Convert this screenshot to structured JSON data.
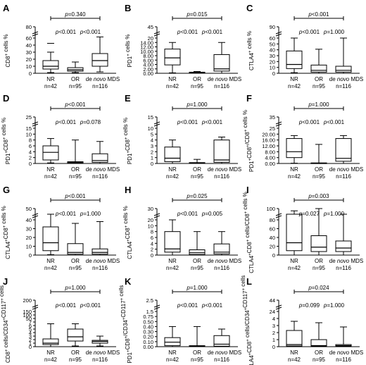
{
  "figure": {
    "group_labels": [
      "NR",
      "OR",
      "de novo MDS"
    ],
    "group_counts": [
      "n=42",
      "n=95",
      "n=116"
    ]
  },
  "chart_data": [
    {
      "panel": "A",
      "type": "box",
      "ylabel": "CD8+ cells %",
      "ticks": [
        "0",
        "10",
        "20",
        "30",
        "40",
        "60",
        "80"
      ],
      "ylim": [
        0,
        80
      ],
      "series": [
        {
          "name": "NR",
          "count": "n=42",
          "whisker_low": 1,
          "q1": 6,
          "median": 10,
          "q3": 18,
          "whisker_high": 30,
          "outlier": 45
        },
        {
          "name": "OR",
          "count": "n=95",
          "whisker_low": 1,
          "q1": 3,
          "median": 5,
          "q3": 8,
          "whisker_high": 16
        },
        {
          "name": "de novo MDS",
          "count": "n=116",
          "whisker_low": 2,
          "q1": 10,
          "median": 18,
          "q3": 28,
          "whisker_high": 62
        }
      ],
      "comparisons": [
        {
          "label": "p=0.340",
          "from": "NR",
          "to": "de novo MDS"
        },
        {
          "label": "p<0.001",
          "from": "NR",
          "to": "OR"
        },
        {
          "label": "p<0.001",
          "from": "OR",
          "to": "de novo MDS"
        }
      ]
    },
    {
      "panel": "B",
      "type": "box",
      "ylabel": "PD1+ cells %",
      "ticks": [
        "0.00",
        "2.00",
        "4.00",
        "6.00",
        "8.00",
        "10.00",
        "12.00",
        "14.00",
        "20",
        "45"
      ],
      "ylim": [
        0,
        45
      ],
      "series": [
        {
          "name": "NR",
          "count": "n=42",
          "whisker_low": 0.2,
          "q1": 3.8,
          "median": 7,
          "q3": 11,
          "whisker_high": 14
        },
        {
          "name": "OR",
          "count": "n=95",
          "whisker_low": 0,
          "q1": 0.1,
          "median": 0.3,
          "q3": 0.5,
          "whisker_high": 0.8
        },
        {
          "name": "de novo MDS",
          "count": "n=116",
          "whisker_low": 0,
          "q1": 1,
          "median": 2,
          "q3": 8.5,
          "whisker_high": 14
        }
      ],
      "comparisons": [
        {
          "label": "p=0.015",
          "from": "NR",
          "to": "de novo MDS"
        },
        {
          "label": "p<0.001",
          "from": "NR",
          "to": "OR"
        },
        {
          "label": "p<0.001",
          "from": "OR",
          "to": "de novo MDS"
        }
      ]
    },
    {
      "panel": "C",
      "type": "box",
      "ylabel": "CTLA4+ cells %",
      "ticks": [
        "0",
        "10",
        "20",
        "30",
        "40",
        "50",
        "60",
        "90"
      ],
      "ylim": [
        0,
        90
      ],
      "series": [
        {
          "name": "NR",
          "count": "n=42",
          "whisker_low": 1,
          "q1": 8,
          "median": 15,
          "q3": 38,
          "whisker_high": 60
        },
        {
          "name": "OR",
          "count": "n=95",
          "whisker_low": 0,
          "q1": 2,
          "median": 5,
          "q3": 14,
          "whisker_high": 41
        },
        {
          "name": "de novo MDS",
          "count": "n=116",
          "whisker_low": 0,
          "q1": 2,
          "median": 5,
          "q3": 12,
          "whisker_high": 60
        }
      ],
      "comparisons": [
        {
          "label": "p<0.001",
          "from": "NR",
          "to": "de novo MDS"
        },
        {
          "label": "p<0.001",
          "from": "NR",
          "to": "OR"
        },
        {
          "label": "p=1.000",
          "from": "OR",
          "to": "de novo MDS"
        }
      ]
    },
    {
      "panel": "D",
      "type": "box",
      "ylabel": "PD1+CD8+ cells %",
      "ticks": [
        "0",
        "2",
        "4",
        "6",
        "8",
        "10",
        "15",
        "25"
      ],
      "ylim": [
        0,
        25
      ],
      "series": [
        {
          "name": "NR",
          "count": "n=42",
          "whisker_low": 0.2,
          "q1": 1.2,
          "median": 3.8,
          "q3": 6,
          "whisker_high": 8.5
        },
        {
          "name": "OR",
          "count": "n=95",
          "whisker_low": 0,
          "q1": 0.1,
          "median": 0.3,
          "q3": 0.6,
          "whisker_high": 8
        },
        {
          "name": "de novo MDS",
          "count": "n=116",
          "whisker_low": 0,
          "q1": 0.4,
          "median": 1,
          "q3": 3.3,
          "whisker_high": 7.5
        }
      ],
      "comparisons": [
        {
          "label": "p<0.001",
          "from": "NR",
          "to": "de novo MDS"
        },
        {
          "label": "p<0.001",
          "from": "NR",
          "to": "OR"
        },
        {
          "label": "p=0.078",
          "from": "OR",
          "to": "de novo MDS"
        }
      ]
    },
    {
      "panel": "E",
      "type": "box",
      "ylabel": "PD1+CD8+ cells %",
      "ticks": [
        "0",
        "1",
        "2",
        "3",
        "4",
        "5",
        "10",
        "15"
      ],
      "ylim": [
        0,
        15
      ],
      "series": [
        {
          "name": "NR",
          "count": "n=42",
          "whisker_low": 0,
          "q1": 0.3,
          "median": 0.9,
          "q3": 2.8,
          "whisker_high": 4
        },
        {
          "name": "OR",
          "count": "n=95",
          "whisker_low": 0,
          "q1": 0,
          "median": 0.05,
          "q3": 0.15,
          "whisker_high": 0.7
        },
        {
          "name": "de novo MDS",
          "count": "n=116",
          "whisker_low": 0,
          "q1": 0.2,
          "median": 0.6,
          "q3": 4,
          "whisker_high": 4.5
        }
      ],
      "comparisons": [
        {
          "label": "p=1.000",
          "from": "NR",
          "to": "de novo MDS"
        },
        {
          "label": "p<0.001",
          "from": "NR",
          "to": "OR"
        },
        {
          "label": "p<0.001",
          "from": "OR",
          "to": "de novo MDS"
        }
      ]
    },
    {
      "panel": "F",
      "type": "box",
      "ylabel": "PD1+CD8+/CD8+ cells %",
      "ticks": [
        "0.00",
        "4.00",
        "8.00",
        "12.00",
        "16.00",
        "20.00",
        "25",
        "35"
      ],
      "ylim": [
        0,
        35
      ],
      "series": [
        {
          "name": "NR",
          "count": "n=42",
          "whisker_low": 0.2,
          "q1": 4,
          "median": 8,
          "q3": 17,
          "whisker_high": 19
        },
        {
          "name": "OR",
          "count": "n=95",
          "whisker_low": 0,
          "q1": 0,
          "median": 0.2,
          "q3": 0.4,
          "whisker_high": 13
        },
        {
          "name": "de novo MDS",
          "count": "n=116",
          "whisker_low": 0,
          "q1": 1.5,
          "median": 3.5,
          "q3": 17,
          "whisker_high": 19
        }
      ],
      "comparisons": [
        {
          "label": "p=1.000",
          "from": "NR",
          "to": "de novo MDS"
        },
        {
          "label": "p<0.001",
          "from": "NR",
          "to": "OR"
        },
        {
          "label": "p<0.001",
          "from": "OR",
          "to": "de novo MDS"
        }
      ]
    },
    {
      "panel": "G",
      "type": "box",
      "ylabel": "CTLA4+CD8+ cells %",
      "ticks": [
        "0",
        "10",
        "20",
        "30",
        "40",
        "50"
      ],
      "ylim": [
        0,
        50
      ],
      "series": [
        {
          "name": "NR",
          "count": "n=42",
          "whisker_low": 0.5,
          "q1": 5,
          "median": 14,
          "q3": 32,
          "whisker_high": 45
        },
        {
          "name": "OR",
          "count": "n=95",
          "whisker_low": 0,
          "q1": 1,
          "median": 3,
          "q3": 13,
          "whisker_high": 36
        },
        {
          "name": "de novo MDS",
          "count": "n=116",
          "whisker_low": 0,
          "q1": 1,
          "median": 3,
          "q3": 7,
          "whisker_high": 38
        }
      ],
      "comparisons": [
        {
          "label": "p<0.001",
          "from": "NR",
          "to": "de novo MDS"
        },
        {
          "label": "p<0.001",
          "from": "NR",
          "to": "OR"
        },
        {
          "label": "p=1.000",
          "from": "OR",
          "to": "de novo MDS"
        }
      ]
    },
    {
      "panel": "H",
      "type": "box",
      "ylabel": "CTLA4+CD8+ cells %",
      "ticks": [
        "0",
        "2",
        "4",
        "6",
        "8",
        "10",
        "20",
        "30"
      ],
      "ylim": [
        0,
        30
      ],
      "series": [
        {
          "name": "NR",
          "count": "n=42",
          "whisker_low": 0,
          "q1": 1,
          "median": 2.1,
          "q3": 8,
          "whisker_high": 20
        },
        {
          "name": "OR",
          "count": "n=95",
          "whisker_low": 0,
          "q1": 0.2,
          "median": 0.8,
          "q3": 1.8,
          "whisker_high": 8
        },
        {
          "name": "de novo MDS",
          "count": "n=116",
          "whisker_low": 0,
          "q1": 0.4,
          "median": 1,
          "q3": 3.8,
          "whisker_high": 8
        }
      ],
      "comparisons": [
        {
          "label": "p=0.025",
          "from": "NR",
          "to": "de novo MDS"
        },
        {
          "label": "p<0.001",
          "from": "NR",
          "to": "OR"
        },
        {
          "label": "p=0.005",
          "from": "OR",
          "to": "de novo MDS"
        }
      ]
    },
    {
      "panel": "I",
      "type": "box",
      "ylabel": "CTLA4+CD8+ cells/CD8+ cells %",
      "ticks": [
        "0",
        "20",
        "40",
        "60",
        "80",
        "100"
      ],
      "ylim": [
        0,
        100
      ],
      "series": [
        {
          "name": "NR",
          "count": "n=42",
          "whisker_low": 0,
          "q1": 10,
          "median": 28,
          "q3": 90,
          "whisker_high": 96
        },
        {
          "name": "OR",
          "count": "n=95",
          "whisker_low": 0,
          "q1": 8,
          "median": 18,
          "q3": 44,
          "whisker_high": 100
        },
        {
          "name": "de novo MDS",
          "count": "n=116",
          "whisker_low": 0,
          "q1": 8,
          "median": 16,
          "q3": 32,
          "whisker_high": 90
        }
      ],
      "comparisons": [
        {
          "label": "p=0.003",
          "from": "NR",
          "to": "de novo MDS"
        },
        {
          "label": "p=0.027",
          "from": "NR",
          "to": "OR"
        },
        {
          "label": "p=1.000",
          "from": "OR",
          "to": "de novo MDS"
        }
      ]
    },
    {
      "panel": "J",
      "type": "box",
      "ylabel": "CD8+ cells/CD34+CD117+ cells",
      "ticks": [
        "0",
        "1",
        "2",
        "3",
        "4",
        "5",
        "6",
        "7",
        "50",
        "100",
        "150",
        "200"
      ],
      "ylim": [
        0,
        200
      ],
      "series": [
        {
          "name": "NR",
          "count": "n=42",
          "whisker_low": 0,
          "q1": 0.6,
          "median": 1,
          "q3": 2.2,
          "whisker_high": 6.5
        },
        {
          "name": "OR",
          "count": "n=95",
          "whisker_low": 0.2,
          "q1": 1.6,
          "median": 2.8,
          "q3": 5,
          "whisker_high": 6.5
        },
        {
          "name": "de novo MDS",
          "count": "n=116",
          "whisker_low": 0.2,
          "q1": 1,
          "median": 1.5,
          "q3": 1.8,
          "whisker_high": 3
        }
      ],
      "comparisons": [
        {
          "label": "p=1.000",
          "from": "NR",
          "to": "de novo MDS"
        },
        {
          "label": "p<0.001",
          "from": "NR",
          "to": "OR"
        },
        {
          "label": "p<0.001",
          "from": "OR",
          "to": "de novo MDS"
        }
      ]
    },
    {
      "panel": "K",
      "type": "box",
      "ylabel": "PD1+CD8+/CD34+CD117+ cells",
      "ticks": [
        "0.00",
        "0.10",
        "0.20",
        "0.30",
        "0.40",
        "0.50",
        "0.75",
        "1.5",
        "2.5"
      ],
      "ylim": [
        0,
        2.5
      ],
      "series": [
        {
          "name": "NR",
          "count": "n=42",
          "whisker_low": 0,
          "q1": 0.02,
          "median": 0.09,
          "q3": 0.18,
          "whisker_high": 0.4
        },
        {
          "name": "OR",
          "count": "n=95",
          "whisker_low": 0,
          "q1": 0,
          "median": 0.01,
          "q3": 0.02,
          "whisker_high": 0.4
        },
        {
          "name": "de novo MDS",
          "count": "n=116",
          "whisker_low": 0,
          "q1": 0.01,
          "median": 0.05,
          "q3": 0.22,
          "whisker_high": 0.35
        }
      ],
      "comparisons": [
        {
          "label": "p=1.000",
          "from": "NR",
          "to": "de novo MDS"
        },
        {
          "label": "p<0.001",
          "from": "NR",
          "to": "OR"
        },
        {
          "label": "p<0.001",
          "from": "OR",
          "to": "de novo MDS"
        }
      ]
    },
    {
      "panel": "L",
      "type": "box",
      "ylabel": "CTLA4+CD8+ cells/CD34+CD117+ cells",
      "ticks": [
        "0",
        "1",
        "2",
        "3",
        "4",
        "24",
        "44"
      ],
      "ylim": [
        0,
        44
      ],
      "series": [
        {
          "name": "NR",
          "count": "n=42",
          "whisker_low": 0,
          "q1": 0.1,
          "median": 0.3,
          "q3": 2.3,
          "whisker_high": 3.6
        },
        {
          "name": "OR",
          "count": "n=95",
          "whisker_low": 0,
          "q1": 0.05,
          "median": 0.15,
          "q3": 1,
          "whisker_high": 3.4
        },
        {
          "name": "de novo MDS",
          "count": "n=116",
          "whisker_low": 0,
          "q1": 0.05,
          "median": 0.15,
          "q3": 0.3,
          "whisker_high": 2.8
        }
      ],
      "comparisons": [
        {
          "label": "p=0.024",
          "from": "NR",
          "to": "de novo MDS"
        },
        {
          "label": "p=0.099",
          "from": "NR",
          "to": "OR"
        },
        {
          "label": "p=1.000",
          "from": "OR",
          "to": "de novo MDS"
        }
      ]
    }
  ]
}
